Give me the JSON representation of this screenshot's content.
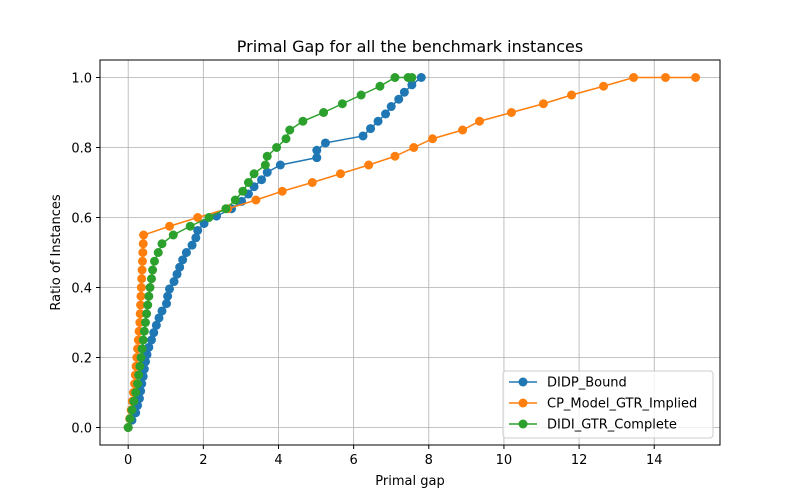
{
  "chart_data": {
    "type": "line",
    "title": "Primal Gap for all the benchmark instances",
    "xlabel": "Primal gap",
    "ylabel": "Ratio of Instances",
    "xlim": [
      -0.75,
      15.75
    ],
    "ylim": [
      -0.05,
      1.05
    ],
    "xticks": [
      0,
      2,
      4,
      6,
      8,
      10,
      12,
      14
    ],
    "yticks": [
      0.0,
      0.2,
      0.4,
      0.6,
      0.8,
      1.0
    ],
    "xtick_labels": [
      "0",
      "2",
      "4",
      "6",
      "8",
      "10",
      "12",
      "14"
    ],
    "ytick_labels": [
      "0.0",
      "0.2",
      "0.4",
      "0.6",
      "0.8",
      "1.0"
    ],
    "grid": true,
    "legend_position": "bottom-right",
    "series": [
      {
        "name": "DIDP_Bound",
        "color": "#1f77b4",
        "x": [
          0.0,
          0.1,
          0.2,
          0.25,
          0.3,
          0.33,
          0.36,
          0.4,
          0.43,
          0.46,
          0.5,
          0.55,
          0.62,
          0.68,
          0.75,
          0.82,
          0.9,
          1.02,
          1.05,
          1.1,
          1.22,
          1.3,
          1.37,
          1.45,
          1.55,
          1.7,
          1.8,
          1.85,
          2.02,
          2.35,
          2.75,
          3.02,
          3.2,
          3.35,
          3.55,
          3.7,
          4.05,
          5.02,
          5.02,
          5.25,
          6.25,
          6.45,
          6.65,
          6.85,
          7.0,
          7.2,
          7.35,
          7.55,
          7.8
        ],
        "y": [
          0.0,
          0.021,
          0.042,
          0.063,
          0.083,
          0.104,
          0.125,
          0.146,
          0.167,
          0.188,
          0.208,
          0.229,
          0.25,
          0.271,
          0.292,
          0.313,
          0.333,
          0.354,
          0.375,
          0.396,
          0.417,
          0.438,
          0.458,
          0.479,
          0.5,
          0.521,
          0.542,
          0.563,
          0.583,
          0.604,
          0.625,
          0.646,
          0.667,
          0.688,
          0.708,
          0.729,
          0.75,
          0.771,
          0.792,
          0.813,
          0.833,
          0.854,
          0.875,
          0.896,
          0.917,
          0.938,
          0.958,
          0.979,
          1.0
        ],
        "y_note": "ratio"
      },
      {
        "name": "CP_Model_GTR_Implied",
        "color": "#ff7f0e",
        "x": [
          0.0,
          0.04,
          0.08,
          0.11,
          0.14,
          0.17,
          0.19,
          0.21,
          0.23,
          0.25,
          0.27,
          0.29,
          0.31,
          0.32,
          0.33,
          0.34,
          0.35,
          0.36,
          0.37,
          0.38,
          0.39,
          0.4,
          0.41,
          1.1,
          1.85,
          2.65,
          3.4,
          4.1,
          4.9,
          5.65,
          6.4,
          7.1,
          7.6,
          8.1,
          8.9,
          9.35,
          10.2,
          11.05,
          11.8,
          12.65,
          13.45,
          14.3,
          15.1
        ],
        "y": [
          0.0,
          0.025,
          0.05,
          0.075,
          0.1,
          0.125,
          0.15,
          0.175,
          0.2,
          0.225,
          0.25,
          0.275,
          0.3,
          0.325,
          0.35,
          0.375,
          0.4,
          0.425,
          0.45,
          0.475,
          0.5,
          0.525,
          0.55,
          0.575,
          0.6,
          0.625,
          0.65,
          0.675,
          0.7,
          0.725,
          0.75,
          0.775,
          0.8,
          0.825,
          0.85,
          0.875,
          0.9,
          0.925,
          0.95,
          0.975,
          1.0,
          1.0,
          1.0
        ],
        "y_note": "ratio"
      },
      {
        "name": "DIDI_GTR_Complete",
        "color": "#2ca02c",
        "x": [
          0.0,
          0.05,
          0.1,
          0.15,
          0.2,
          0.25,
          0.28,
          0.31,
          0.34,
          0.37,
          0.4,
          0.43,
          0.46,
          0.49,
          0.52,
          0.55,
          0.58,
          0.62,
          0.65,
          0.7,
          0.8,
          0.9,
          1.2,
          1.65,
          2.15,
          2.6,
          2.85,
          3.05,
          3.2,
          3.35,
          3.65,
          3.7,
          3.95,
          4.2,
          4.3,
          4.65,
          5.2,
          5.7,
          6.2,
          6.7,
          7.1,
          7.45,
          7.55
        ],
        "y": [
          0.0,
          0.025,
          0.05,
          0.075,
          0.1,
          0.125,
          0.15,
          0.175,
          0.2,
          0.225,
          0.25,
          0.275,
          0.3,
          0.325,
          0.35,
          0.375,
          0.4,
          0.425,
          0.45,
          0.475,
          0.5,
          0.525,
          0.55,
          0.575,
          0.6,
          0.625,
          0.65,
          0.675,
          0.7,
          0.725,
          0.75,
          0.775,
          0.8,
          0.825,
          0.85,
          0.875,
          0.9,
          0.925,
          0.95,
          0.975,
          1.0,
          1.0,
          1.0
        ],
        "y_note": "ratio"
      }
    ]
  }
}
